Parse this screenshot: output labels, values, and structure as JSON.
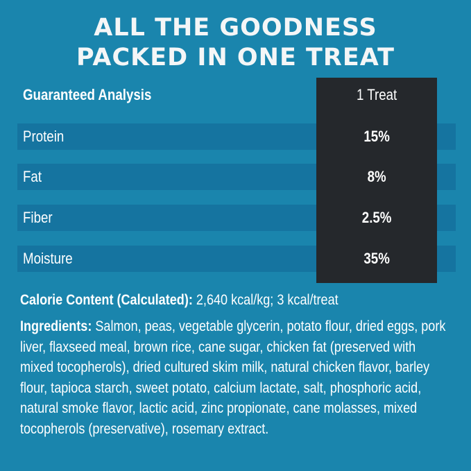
{
  "header": {
    "title_lines": [
      "ALL THE GOODNESS",
      "PACKED IN ONE TREAT"
    ]
  },
  "table": {
    "header": [
      "Guaranteed Analysis",
      "1 Treat"
    ],
    "rows": [
      [
        "Protein",
        "15%"
      ],
      [
        "Fat",
        "8%"
      ],
      [
        "Fiber",
        "2.5%"
      ],
      [
        "Moisture",
        "35%"
      ]
    ]
  },
  "calories": {
    "label": "Calorie Content (Calculated):",
    "text": "2,640 kcal/kg; 3 kcal/treat"
  },
  "ingredients": {
    "label": "Ingredients:",
    "text": "Salmon, peas, vegetable glycerin, potato flour, dried eggs, pork liver, flaxseed meal, brown rice, cane sugar, chicken fat (preserved with mixed tocopherols), dried cultured skim milk, natural chicken flavor, barley flour, tapioca starch, sweet potato, calcium lactate, salt, phosphoric acid, natural smoke flavor, lactic acid, zinc propionate, cane molasses, mixed tocopherols (preservative), rosemary extract."
  }
}
